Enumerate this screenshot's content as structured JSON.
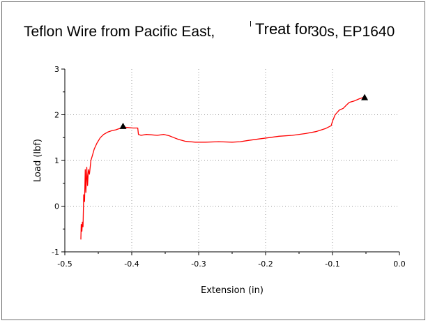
{
  "chart_data": {
    "type": "line",
    "title_main": "Teflon Wire from Pacific East,",
    "title_tail": "Treat for",
    "title_version": "30s, EP1640",
    "xlabel": "Extension (in)",
    "ylabel": "Load (lbf)",
    "xlim": [
      -0.5,
      0.0
    ],
    "ylim": [
      -1,
      3
    ],
    "x_ticks": [
      "-0.5",
      "-0.4",
      "-0.3",
      "-0.2",
      "-0.1",
      "0.0"
    ],
    "y_ticks": [
      "-1",
      "0",
      "1",
      "2",
      "3"
    ],
    "grid": "dotted",
    "line_color": "#ff0000",
    "series": [
      {
        "values": [
          [
            -0.476,
            -0.73
          ],
          [
            -0.4755,
            -0.4
          ],
          [
            -0.4745,
            -0.55
          ],
          [
            -0.4738,
            -0.35
          ],
          [
            -0.4728,
            -0.45
          ],
          [
            -0.4718,
            0.25
          ],
          [
            -0.4705,
            0.1
          ],
          [
            -0.4695,
            0.8
          ],
          [
            -0.4685,
            0.3
          ],
          [
            -0.4672,
            0.85
          ],
          [
            -0.466,
            0.45
          ],
          [
            -0.4648,
            0.8
          ],
          [
            -0.4632,
            0.7
          ],
          [
            -0.461,
            1.0
          ],
          [
            -0.459,
            1.1
          ],
          [
            -0.456,
            1.25
          ],
          [
            -0.452,
            1.38
          ],
          [
            -0.447,
            1.5
          ],
          [
            -0.442,
            1.57
          ],
          [
            -0.436,
            1.62
          ],
          [
            -0.43,
            1.65
          ],
          [
            -0.424,
            1.67
          ],
          [
            -0.418,
            1.7
          ],
          [
            -0.413,
            1.73
          ],
          [
            -0.406,
            1.72
          ],
          [
            -0.398,
            1.71
          ],
          [
            -0.391,
            1.71
          ],
          [
            -0.39,
            1.57
          ],
          [
            -0.386,
            1.55
          ],
          [
            -0.378,
            1.57
          ],
          [
            -0.37,
            1.56
          ],
          [
            -0.362,
            1.55
          ],
          [
            -0.352,
            1.57
          ],
          [
            -0.344,
            1.54
          ],
          [
            -0.337,
            1.5
          ],
          [
            -0.33,
            1.46
          ],
          [
            -0.32,
            1.42
          ],
          [
            -0.305,
            1.4
          ],
          [
            -0.29,
            1.4
          ],
          [
            -0.27,
            1.41
          ],
          [
            -0.25,
            1.4
          ],
          [
            -0.238,
            1.41
          ],
          [
            -0.225,
            1.44
          ],
          [
            -0.21,
            1.47
          ],
          [
            -0.195,
            1.5
          ],
          [
            -0.18,
            1.53
          ],
          [
            -0.16,
            1.55
          ],
          [
            -0.14,
            1.59
          ],
          [
            -0.125,
            1.63
          ],
          [
            -0.11,
            1.7
          ],
          [
            -0.102,
            1.76
          ],
          [
            -0.1,
            1.86
          ],
          [
            -0.096,
            2.0
          ],
          [
            -0.09,
            2.1
          ],
          [
            -0.084,
            2.14
          ],
          [
            -0.08,
            2.2
          ],
          [
            -0.075,
            2.27
          ],
          [
            -0.068,
            2.3
          ],
          [
            -0.06,
            2.35
          ],
          [
            -0.054,
            2.38
          ],
          [
            -0.05,
            2.38
          ]
        ]
      }
    ],
    "markers": [
      {
        "x": -0.413,
        "y": 1.75,
        "shape": "triangle"
      },
      {
        "x": -0.052,
        "y": 2.38,
        "shape": "triangle"
      }
    ]
  }
}
